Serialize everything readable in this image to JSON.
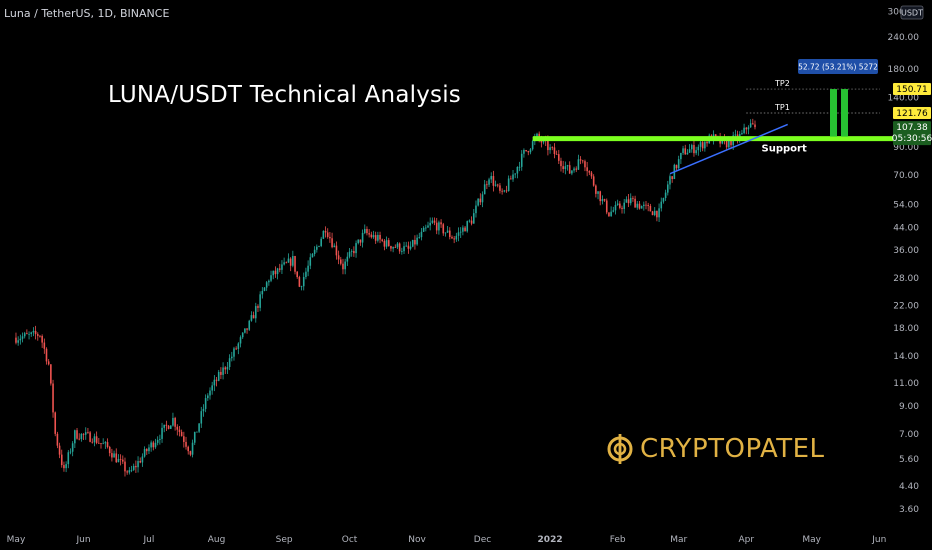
{
  "header": {
    "symbol": "Luna / TetherUS, 1D, BINANCE"
  },
  "overlay": {
    "title": "LUNA/USDT Technical Analysis"
  },
  "watermark": {
    "brand": "CRYPTOPATEL",
    "color": "#e1b244"
  },
  "colors": {
    "up": "#26a69a",
    "down": "#ef5350",
    "support": "#7cff1f",
    "trend": "#3a6fff",
    "tp_label": "#ffeb3b",
    "target_box": "#27c232",
    "measure_box": "#1f4fa8"
  },
  "chart_data": {
    "type": "candlestick",
    "currency": "USDT",
    "y_scale": "log",
    "ylim": [
      3.2,
      310
    ],
    "y_ticks": [
      "300.00",
      "240.00",
      "180.00",
      "140.00",
      "90.00",
      "70.00",
      "54.00",
      "44.00",
      "36.00",
      "28.00",
      "22.00",
      "18.00",
      "14.00",
      "11.00",
      "9.00",
      "7.00",
      "5.60",
      "4.40",
      "3.60"
    ],
    "x_ticks": [
      "May",
      "Jun",
      "Jul",
      "Aug",
      "Sep",
      "Oct",
      "Nov",
      "Dec",
      "2022",
      "Feb",
      "Mar",
      "Apr",
      "May",
      "Jun"
    ],
    "price_path": [
      {
        "x": "2021-05-01",
        "y": 16.5
      },
      {
        "x": "2021-05-12",
        "y": 17.0
      },
      {
        "x": "2021-05-16",
        "y": 13.0
      },
      {
        "x": "2021-05-19",
        "y": 7.0
      },
      {
        "x": "2021-05-23",
        "y": 5.0
      },
      {
        "x": "2021-05-28",
        "y": 7.0
      },
      {
        "x": "2021-06-05",
        "y": 6.8
      },
      {
        "x": "2021-06-12",
        "y": 6.2
      },
      {
        "x": "2021-06-22",
        "y": 4.9
      },
      {
        "x": "2021-07-01",
        "y": 6.2
      },
      {
        "x": "2021-07-12",
        "y": 8.0
      },
      {
        "x": "2021-07-20",
        "y": 6.0
      },
      {
        "x": "2021-07-28",
        "y": 10.0
      },
      {
        "x": "2021-08-08",
        "y": 14.0
      },
      {
        "x": "2021-08-16",
        "y": 18.5
      },
      {
        "x": "2021-08-25",
        "y": 28.0
      },
      {
        "x": "2021-09-05",
        "y": 33.0
      },
      {
        "x": "2021-09-08",
        "y": 26.0
      },
      {
        "x": "2021-09-20",
        "y": 44.0
      },
      {
        "x": "2021-09-28",
        "y": 31.0
      },
      {
        "x": "2021-10-08",
        "y": 42.0
      },
      {
        "x": "2021-10-18",
        "y": 38.0
      },
      {
        "x": "2021-10-28",
        "y": 36.0
      },
      {
        "x": "2021-11-08",
        "y": 46.0
      },
      {
        "x": "2021-11-18",
        "y": 40.0
      },
      {
        "x": "2021-11-26",
        "y": 47.0
      },
      {
        "x": "2021-12-04",
        "y": 70.0
      },
      {
        "x": "2021-12-10",
        "y": 58.0
      },
      {
        "x": "2021-12-20",
        "y": 85.0
      },
      {
        "x": "2021-12-26",
        "y": 98.0
      },
      {
        "x": "2022-01-03",
        "y": 85.0
      },
      {
        "x": "2022-01-10",
        "y": 72.0
      },
      {
        "x": "2022-01-16",
        "y": 82.0
      },
      {
        "x": "2022-01-22",
        "y": 62.0
      },
      {
        "x": "2022-01-28",
        "y": 50.0
      },
      {
        "x": "2022-02-07",
        "y": 56.0
      },
      {
        "x": "2022-02-14",
        "y": 52.0
      },
      {
        "x": "2022-02-20",
        "y": 50.0
      },
      {
        "x": "2022-02-25",
        "y": 68.0
      },
      {
        "x": "2022-03-03",
        "y": 86.0
      },
      {
        "x": "2022-03-10",
        "y": 90.0
      },
      {
        "x": "2022-03-16",
        "y": 98.0
      },
      {
        "x": "2022-03-22",
        "y": 92.0
      },
      {
        "x": "2022-03-30",
        "y": 100.0
      },
      {
        "x": "2022-04-02",
        "y": 110.0
      },
      {
        "x": "2022-04-05",
        "y": 107.38
      }
    ],
    "annotations": {
      "support": {
        "label": "Support",
        "y": 97.0,
        "x_start": "2021-12-24",
        "x_end": "2022-06-15"
      },
      "trendline": {
        "x_start": "2022-02-25",
        "y_start": 71.0,
        "x_end": "2022-04-20",
        "y_end": 110.0
      },
      "tp1": {
        "label": "TP1",
        "price": "121.76"
      },
      "tp2": {
        "label": "TP2",
        "price": "150.71"
      },
      "measure": {
        "text": "52.72 (53.21%) 5272"
      },
      "last_price": {
        "price": "107.38",
        "countdown": "05:30:56"
      }
    }
  }
}
